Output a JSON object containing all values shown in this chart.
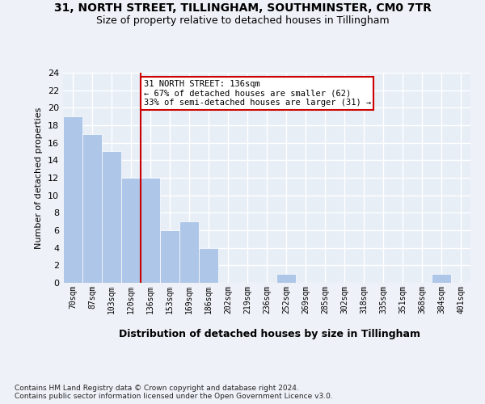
{
  "title1": "31, NORTH STREET, TILLINGHAM, SOUTHMINSTER, CM0 7TR",
  "title2": "Size of property relative to detached houses in Tillingham",
  "xlabel": "Distribution of detached houses by size in Tillingham",
  "ylabel": "Number of detached properties",
  "bin_labels": [
    "70sqm",
    "87sqm",
    "103sqm",
    "120sqm",
    "136sqm",
    "153sqm",
    "169sqm",
    "186sqm",
    "202sqm",
    "219sqm",
    "236sqm",
    "252sqm",
    "269sqm",
    "285sqm",
    "302sqm",
    "318sqm",
    "335sqm",
    "351sqm",
    "368sqm",
    "384sqm",
    "401sqm"
  ],
  "bar_heights": [
    19,
    17,
    15,
    12,
    12,
    6,
    7,
    4,
    0,
    0,
    0,
    1,
    0,
    0,
    0,
    0,
    0,
    0,
    0,
    1,
    0
  ],
  "bar_color": "#aec6e8",
  "bar_edge_color": "#ffffff",
  "highlight_bin": 4,
  "highlight_line_color": "#cc0000",
  "annotation_text": "31 NORTH STREET: 136sqm\n← 67% of detached houses are smaller (62)\n33% of semi-detached houses are larger (31) →",
  "annotation_box_color": "#cc0000",
  "ylim": [
    0,
    24
  ],
  "yticks": [
    0,
    2,
    4,
    6,
    8,
    10,
    12,
    14,
    16,
    18,
    20,
    22,
    24
  ],
  "footnote": "Contains HM Land Registry data © Crown copyright and database right 2024.\nContains public sector information licensed under the Open Government Licence v3.0.",
  "bg_color": "#eef2f8",
  "plot_bg_color": "#e8eef6",
  "grid_color": "#ffffff",
  "title1_fontsize": 10,
  "title2_fontsize": 9,
  "ylabel_fontsize": 8,
  "xlabel_fontsize": 9,
  "footnote_fontsize": 6.5
}
